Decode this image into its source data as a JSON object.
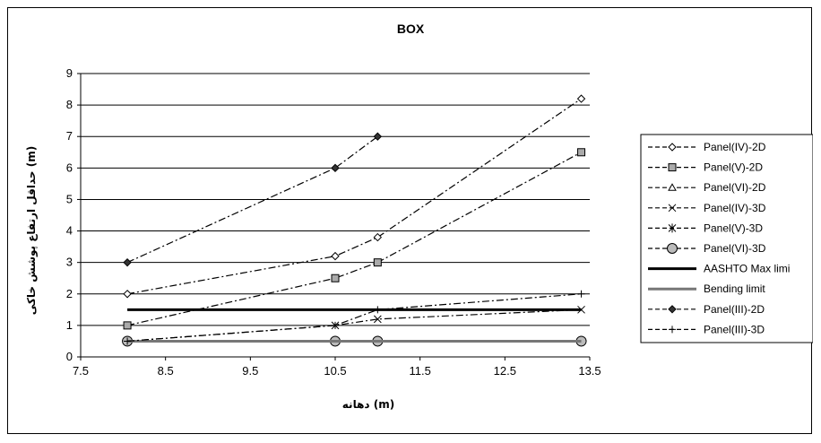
{
  "chart_data": {
    "type": "line",
    "title": "BOX",
    "xlabel": "دهانه (m)",
    "ylabel": "حداقل ارتفاع پوشش خاکی (m)",
    "xlim": [
      7.5,
      13.5
    ],
    "ylim": [
      0,
      9
    ],
    "x_ticks": [
      "7.5",
      "8.5",
      "9.5",
      "10.5",
      "11.5",
      "12.5",
      "13.5"
    ],
    "y_ticks": [
      "0",
      "1",
      "2",
      "3",
      "4",
      "5",
      "6",
      "7",
      "8",
      "9"
    ],
    "grid": "horizontal",
    "legend_position": "right",
    "series": [
      {
        "name": "Panel(IV)-2D",
        "x": [
          8.05,
          10.5,
          11.0,
          13.4
        ],
        "y": [
          2.0,
          3.2,
          3.8,
          8.2
        ],
        "marker": "diamond-open",
        "dash": "dashdot",
        "color": "#000000"
      },
      {
        "name": "Panel(V)-2D",
        "x": [
          8.05,
          10.5,
          11.0,
          13.4
        ],
        "y": [
          1.0,
          2.5,
          3.0,
          6.5
        ],
        "marker": "square-gray",
        "dash": "dashdot",
        "color": "#000000"
      },
      {
        "name": "Panel(VI)-2D",
        "x": [
          8.05,
          10.5,
          11.0,
          13.4
        ],
        "y": [
          0.5,
          0.5,
          0.5,
          0.5
        ],
        "marker": "triangle-open",
        "dash": "dashdot",
        "color": "#000000"
      },
      {
        "name": "Panel(IV)-3D",
        "x": [
          8.05,
          10.5,
          11.0,
          13.4
        ],
        "y": [
          0.5,
          1.0,
          1.2,
          1.5
        ],
        "marker": "x",
        "dash": "dashdot",
        "color": "#000000"
      },
      {
        "name": "Panel(V)-3D",
        "x": [
          8.05,
          10.5,
          11.0,
          13.4
        ],
        "y": [
          0.5,
          0.5,
          0.5,
          0.5
        ],
        "marker": "asterisk",
        "dash": "dashdot",
        "color": "#000000"
      },
      {
        "name": "Panel(VI)-3D",
        "x": [
          8.05,
          10.5,
          11.0,
          13.4
        ],
        "y": [
          0.5,
          0.5,
          0.5,
          0.5
        ],
        "marker": "circle-gray",
        "dash": "dashdot",
        "color": "#000000"
      },
      {
        "name": "AASHTO Max limi",
        "x": [
          8.05,
          13.4
        ],
        "y": [
          1.5,
          1.5
        ],
        "marker": "none",
        "dash": "solid-thick",
        "color": "#000000"
      },
      {
        "name": "Bending limit",
        "x": [
          8.05,
          13.4
        ],
        "y": [
          0.5,
          0.5
        ],
        "marker": "none",
        "dash": "solid-thick",
        "color": "#777777"
      },
      {
        "name": "Panel(III)-2D",
        "x": [
          8.05,
          10.5,
          11.0
        ],
        "y": [
          3.0,
          6.0,
          7.0
        ],
        "marker": "diamond-filled",
        "dash": "dashdot",
        "color": "#000000"
      },
      {
        "name": "Panel(III)-3D",
        "x": [
          8.05,
          10.5,
          11.0,
          13.4
        ],
        "y": [
          0.5,
          1.0,
          1.5,
          2.0
        ],
        "marker": "plus",
        "dash": "dashdot",
        "color": "#000000"
      }
    ]
  }
}
